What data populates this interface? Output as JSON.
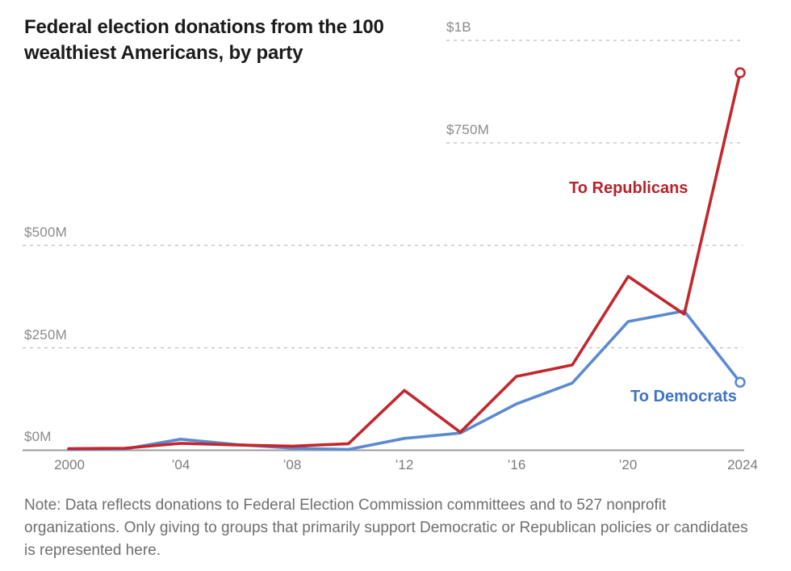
{
  "title": "Federal election donations from the 100 wealthiest Americans, by party",
  "note": "Note: Data reflects donations to Federal Election Commission committees and to 527 nonprofit organizations. Only giving to groups that primarily support Democratic or Republican policies or candidates is represented here.",
  "colors": {
    "republican_line": "#c2272d",
    "republican_label": "#b5232a",
    "democrat_line": "#5b8ad0",
    "democrat_label": "#3f73c6",
    "gridline": "#bdbdbd",
    "axis_line": "#9a9a9a",
    "tick_text": "#8a8a8a",
    "title_text": "#1b1b1b",
    "note_text": "#6e6e6e"
  },
  "chart_data": {
    "type": "line",
    "title": "Federal election donations from the 100 wealthiest Americans, by party",
    "units": "millions of USD",
    "x": [
      2000,
      2002,
      2004,
      2006,
      2008,
      2010,
      2012,
      2014,
      2016,
      2018,
      2020,
      2022,
      2024
    ],
    "series": [
      {
        "name": "To Republicans",
        "color": "#c2272d",
        "values": [
          4,
          5,
          17,
          13,
          10,
          16,
          146,
          44,
          180,
          208,
          424,
          332,
          921
        ]
      },
      {
        "name": "To Democrats",
        "color": "#5b8ad0",
        "values": [
          2,
          3,
          27,
          14,
          5,
          2,
          29,
          42,
          113,
          164,
          314,
          340,
          166
        ]
      }
    ],
    "x_ticks": [
      {
        "year": 2000,
        "label": "2000"
      },
      {
        "year": 2004,
        "label": "’04"
      },
      {
        "year": 2008,
        "label": "’08"
      },
      {
        "year": 2012,
        "label": "’12"
      },
      {
        "year": 2016,
        "label": "’16"
      },
      {
        "year": 2020,
        "label": "’20"
      },
      {
        "year": 2024,
        "label": "2024"
      }
    ],
    "y_ticks": [
      {
        "value": 0,
        "label": "$0M",
        "label_side": "left"
      },
      {
        "value": 250,
        "label": "$250M",
        "label_side": "left"
      },
      {
        "value": 500,
        "label": "$500M",
        "label_side": "left"
      },
      {
        "value": 750,
        "label": "$750M",
        "label_side": "right"
      },
      {
        "value": 1000,
        "label": "$1B",
        "label_side": "right"
      }
    ],
    "xlim": [
      2000,
      2024
    ],
    "ylim": [
      0,
      1000
    ],
    "grid": "horizontal dashed",
    "endpoint_markers": "open circle on last point of each series",
    "legend_position": "inline labels near line ends"
  }
}
